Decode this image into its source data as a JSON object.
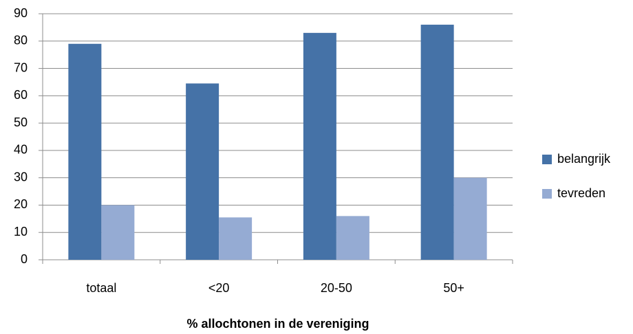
{
  "chart_data": {
    "type": "bar",
    "x_label": "% allochtonen  in de vereniging",
    "categories": [
      "totaal",
      "<20",
      "20-50",
      "50+"
    ],
    "series": [
      {
        "name": "belangrijk",
        "color": "#4572A7",
        "values": [
          79,
          64.5,
          83,
          86
        ]
      },
      {
        "name": "tevreden",
        "color": "#95ABD3",
        "values": [
          20,
          15.5,
          16,
          30
        ]
      }
    ],
    "ylim": [
      0,
      90
    ],
    "yticks": [
      0,
      10,
      20,
      30,
      40,
      50,
      60,
      70,
      80,
      90
    ],
    "grid": true,
    "legend": "right"
  }
}
